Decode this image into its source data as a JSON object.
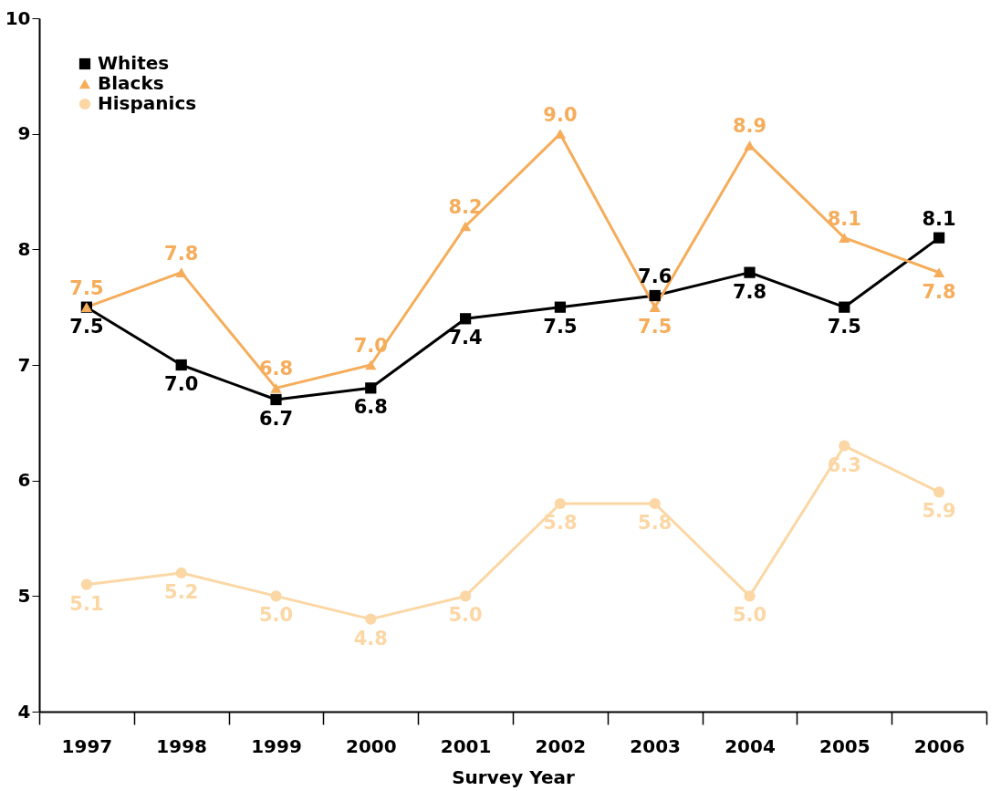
{
  "chart_data": {
    "type": "line",
    "xlabel": "Survey Year",
    "categories": [
      "1997",
      "1998",
      "1999",
      "2000",
      "2001",
      "2002",
      "2003",
      "2004",
      "2005",
      "2006"
    ],
    "series": [
      {
        "name": "Whites",
        "color": "#000000",
        "marker": "square",
        "values": [
          7.5,
          7.0,
          6.7,
          6.8,
          7.4,
          7.5,
          7.6,
          7.8,
          7.5,
          8.1
        ],
        "value_labels": [
          "7.5",
          "7.0",
          "6.7",
          "6.8",
          "7.4",
          "7.5",
          "7.6",
          "7.8",
          "7.5",
          "8.1"
        ]
      },
      {
        "name": "Blacks",
        "color": "#f5ad5b",
        "marker": "triangle",
        "values": [
          7.5,
          7.8,
          6.8,
          7.0,
          8.2,
          9.0,
          7.5,
          8.9,
          8.1,
          7.8
        ],
        "value_labels": [
          "7.5",
          "7.8",
          "6.8",
          "7.0",
          "8.2",
          "9.0",
          "7.5",
          "8.9",
          "8.1",
          "7.8"
        ]
      },
      {
        "name": "Hispanics",
        "color": "#fbd7a5",
        "marker": "circle",
        "values": [
          5.1,
          5.2,
          5.0,
          4.8,
          5.0,
          5.8,
          5.8,
          5.0,
          6.3,
          5.9
        ],
        "value_labels": [
          "5.1",
          "5.2",
          "5.0",
          "4.8",
          "5.0",
          "5.8",
          "5.8",
          "5.0",
          "6.3",
          "5.9"
        ]
      }
    ],
    "ylim": [
      4,
      10
    ],
    "yticks": [
      4,
      5,
      6,
      7,
      8,
      9,
      10
    ],
    "grid": false,
    "legend": "top left",
    "line_style": "solid"
  }
}
